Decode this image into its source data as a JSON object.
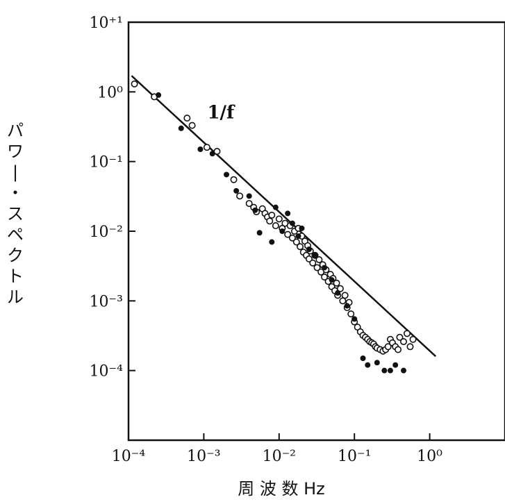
{
  "chart_data": {
    "type": "scatter",
    "title": "",
    "xlabel": "周 波 数 Hz",
    "ylabel": "パワー・スペクトル",
    "xscale": "log",
    "yscale": "log",
    "xlim": [
      0.0001,
      10
    ],
    "ylim": [
      1e-05,
      10
    ],
    "x_tick_labels": [
      "10⁻⁴",
      "10⁻³",
      "10⁻²",
      "10⁻¹",
      "10⁰"
    ],
    "x_tick_values": [
      0.0001,
      0.001,
      0.01,
      0.1,
      1
    ],
    "y_tick_labels": [
      "10⁻⁴",
      "10⁻³",
      "10⁻²",
      "10⁻¹",
      "10⁰",
      "10⁺¹"
    ],
    "y_tick_values": [
      0.0001,
      0.001,
      0.01,
      0.1,
      1,
      10
    ],
    "grid": false,
    "annotations": [
      {
        "text": "1/f",
        "x": 0.0009,
        "y": 0.5
      }
    ],
    "fit_line": {
      "x": [
        0.00011,
        1.2
      ],
      "y": [
        1.7,
        0.00016
      ]
    },
    "series": [
      {
        "marker": "open-circle",
        "x": [
          0.00012,
          0.00022,
          0.0006,
          0.0007,
          0.0011,
          0.0015,
          0.0025,
          0.003,
          0.004,
          0.0046,
          0.005,
          0.006,
          0.0065,
          0.007,
          0.0075,
          0.008,
          0.009,
          0.01,
          0.011,
          0.012,
          0.013,
          0.014,
          0.015,
          0.016,
          0.017,
          0.018,
          0.019,
          0.02,
          0.021,
          0.022,
          0.023,
          0.024,
          0.025,
          0.026,
          0.028,
          0.03,
          0.032,
          0.034,
          0.036,
          0.038,
          0.04,
          0.042,
          0.045,
          0.048,
          0.05,
          0.052,
          0.055,
          0.058,
          0.06,
          0.065,
          0.07,
          0.075,
          0.08,
          0.085,
          0.09,
          0.1,
          0.11,
          0.12,
          0.13,
          0.14,
          0.15,
          0.16,
          0.17,
          0.18,
          0.19,
          0.2,
          0.22,
          0.24,
          0.26,
          0.28,
          0.3,
          0.32,
          0.35,
          0.38,
          0.4,
          0.45,
          0.5,
          0.55,
          0.6
        ],
        "y": [
          1.3,
          0.85,
          0.42,
          0.33,
          0.16,
          0.14,
          0.055,
          0.032,
          0.025,
          0.022,
          0.019,
          0.021,
          0.018,
          0.016,
          0.014,
          0.017,
          0.012,
          0.015,
          0.011,
          0.013,
          0.009,
          0.012,
          0.008,
          0.01,
          0.007,
          0.011,
          0.006,
          0.0085,
          0.005,
          0.0072,
          0.0045,
          0.0062,
          0.004,
          0.0052,
          0.0035,
          0.0045,
          0.003,
          0.0039,
          0.0026,
          0.0033,
          0.0022,
          0.0028,
          0.0019,
          0.0024,
          0.0016,
          0.0021,
          0.0014,
          0.0018,
          0.0012,
          0.0015,
          0.001,
          0.0012,
          0.0008,
          0.00095,
          0.00065,
          0.0005,
          0.00042,
          0.00036,
          0.00032,
          0.0003,
          0.00028,
          0.00026,
          0.00025,
          0.00024,
          0.00022,
          0.00021,
          0.0002,
          0.00019,
          0.0002,
          0.00022,
          0.00028,
          0.00025,
          0.00022,
          0.0002,
          0.0003,
          0.00026,
          0.00034,
          0.00022,
          0.00028
        ]
      },
      {
        "marker": "filled-dot",
        "x": [
          0.00025,
          0.0005,
          0.0009,
          0.0013,
          0.002,
          0.0027,
          0.004,
          0.0048,
          0.0055,
          0.008,
          0.009,
          0.011,
          0.013,
          0.015,
          0.018,
          0.02,
          0.025,
          0.03,
          0.04,
          0.05,
          0.06,
          0.08,
          0.1,
          0.13,
          0.15,
          0.2,
          0.25,
          0.3,
          0.35,
          0.45
        ],
        "y": [
          0.9,
          0.3,
          0.15,
          0.13,
          0.065,
          0.038,
          0.032,
          0.02,
          0.0095,
          0.007,
          0.022,
          0.01,
          0.018,
          0.013,
          0.0085,
          0.011,
          0.0055,
          0.0045,
          0.003,
          0.002,
          0.0013,
          0.00085,
          0.00055,
          0.00015,
          0.00012,
          0.00013,
          0.0001,
          0.0001,
          0.00012,
          0.0001
        ]
      }
    ]
  }
}
